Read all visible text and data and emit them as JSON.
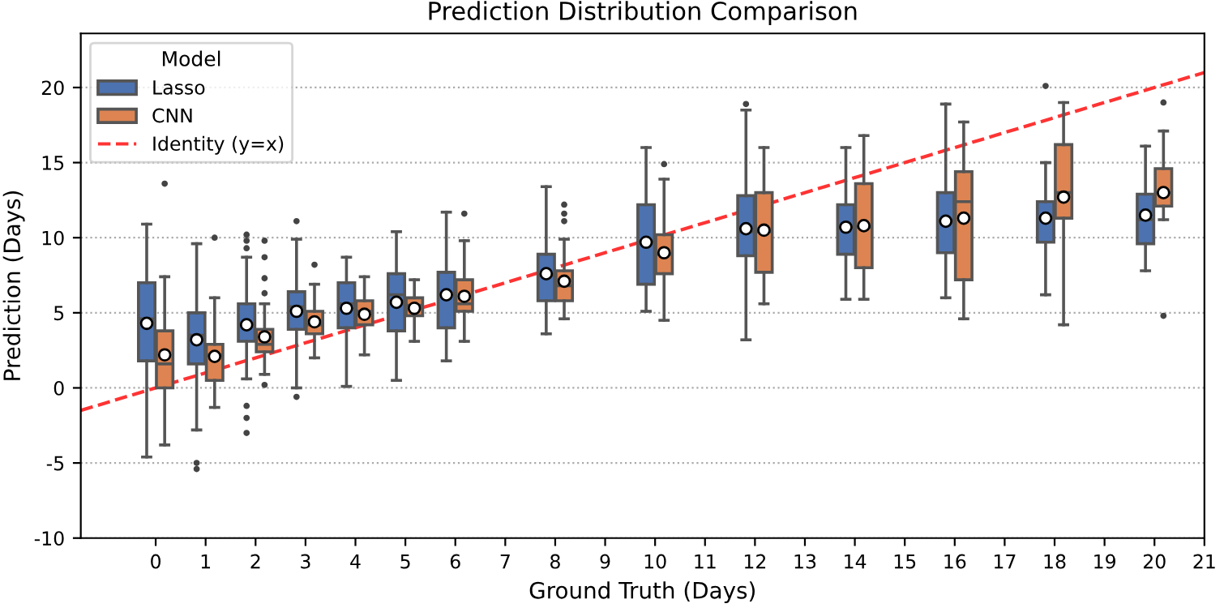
{
  "chart_data": {
    "type": "box",
    "title": "Prediction Distribution Comparison",
    "xlabel": "Ground Truth (Days)",
    "ylabel": "Prediction (Days)",
    "legend_title": "Model",
    "x": [
      0,
      1,
      2,
      3,
      4,
      5,
      6,
      8,
      10,
      12,
      14,
      16,
      18,
      20
    ],
    "xlim": [
      -1.5,
      21
    ],
    "xticks": [
      0,
      1,
      2,
      3,
      4,
      5,
      6,
      7,
      8,
      9,
      10,
      11,
      12,
      13,
      14,
      15,
      16,
      17,
      18,
      19,
      20,
      21
    ],
    "ylim": [
      -10,
      23.6
    ],
    "yticks": [
      -10,
      -5,
      0,
      5,
      10,
      15,
      20
    ],
    "grid": "y",
    "legend": "top left",
    "series": [
      {
        "name": "Lasso",
        "color": "#4c72b0",
        "boxes": [
          {
            "low": -4.6,
            "q1": 1.8,
            "median": 4.6,
            "q3": 7.0,
            "high": 10.9,
            "mean": 4.3
          },
          {
            "low": -2.8,
            "q1": 1.6,
            "median": 3.5,
            "q3": 5.0,
            "high": 9.6,
            "mean": 3.2,
            "outliers": [
              -5.0,
              -5.4
            ]
          },
          {
            "low": 0.6,
            "q1": 3.1,
            "median": 4.3,
            "q3": 5.6,
            "high": 8.7,
            "mean": 4.2,
            "outliers": [
              10.2,
              9.8,
              9.3,
              -1.2,
              -2.0,
              -3.0
            ]
          },
          {
            "low": 0.0,
            "q1": 3.9,
            "median": 5.4,
            "q3": 6.4,
            "high": 9.9,
            "mean": 5.1,
            "outliers": [
              11.1,
              -0.6
            ]
          },
          {
            "low": 0.1,
            "q1": 4.0,
            "median": 5.6,
            "q3": 7.0,
            "high": 8.7,
            "mean": 5.3
          },
          {
            "low": 0.5,
            "q1": 3.8,
            "median": 6.2,
            "q3": 7.6,
            "high": 10.4,
            "mean": 5.7
          },
          {
            "low": 1.8,
            "q1": 4.0,
            "median": 6.3,
            "q3": 7.7,
            "high": 11.7,
            "mean": 6.2
          },
          {
            "low": 3.6,
            "q1": 5.8,
            "median": 7.5,
            "q3": 8.9,
            "high": 13.4,
            "mean": 7.6
          },
          {
            "low": 5.1,
            "q1": 6.9,
            "median": 9.7,
            "q3": 12.2,
            "high": 16.0,
            "mean": 9.7
          },
          {
            "low": 3.2,
            "q1": 8.8,
            "median": 10.4,
            "q3": 12.8,
            "high": 18.5,
            "mean": 10.6,
            "outliers": [
              18.9
            ]
          },
          {
            "low": 5.9,
            "q1": 8.9,
            "median": 10.7,
            "q3": 12.2,
            "high": 16.0,
            "mean": 10.7
          },
          {
            "low": 6.0,
            "q1": 9.0,
            "median": 11.1,
            "q3": 13.0,
            "high": 18.9,
            "mean": 11.1
          },
          {
            "low": 6.2,
            "q1": 9.7,
            "median": 11.3,
            "q3": 12.4,
            "high": 15.0,
            "mean": 11.3,
            "outliers": [
              20.1
            ]
          },
          {
            "low": 7.8,
            "q1": 9.6,
            "median": 11.2,
            "q3": 12.9,
            "high": 16.1,
            "mean": 11.5
          }
        ]
      },
      {
        "name": "CNN",
        "color": "#dd8452",
        "boxes": [
          {
            "low": -3.8,
            "q1": 0.0,
            "median": 1.6,
            "q3": 3.8,
            "high": 7.4,
            "mean": 2.2,
            "outliers": [
              13.6
            ]
          },
          {
            "low": -1.3,
            "q1": 0.5,
            "median": 2.2,
            "q3": 2.9,
            "high": 6.0,
            "mean": 2.1,
            "outliers": [
              10.0
            ]
          },
          {
            "low": 0.9,
            "q1": 2.4,
            "median": 2.9,
            "q3": 3.9,
            "high": 5.6,
            "mean": 3.4,
            "outliers": [
              9.8,
              8.7,
              7.3,
              6.3,
              0.2
            ]
          },
          {
            "low": 2.0,
            "q1": 3.6,
            "median": 4.2,
            "q3": 5.1,
            "high": 6.9,
            "mean": 4.4,
            "outliers": [
              8.2
            ]
          },
          {
            "low": 2.2,
            "q1": 4.2,
            "median": 5.1,
            "q3": 5.8,
            "high": 7.4,
            "mean": 4.9
          },
          {
            "low": 3.1,
            "q1": 4.8,
            "median": 5.5,
            "q3": 6.0,
            "high": 7.2,
            "mean": 5.3
          },
          {
            "low": 3.1,
            "q1": 5.1,
            "median": 5.6,
            "q3": 7.2,
            "high": 9.8,
            "mean": 6.1,
            "outliers": [
              11.6
            ]
          },
          {
            "low": 4.6,
            "q1": 5.8,
            "median": 6.8,
            "q3": 7.8,
            "high": 9.9,
            "mean": 7.1,
            "outliers": [
              12.2,
              11.6,
              11.1
            ]
          },
          {
            "low": 4.5,
            "q1": 7.6,
            "median": 8.9,
            "q3": 10.2,
            "high": 13.9,
            "mean": 9.0,
            "outliers": [
              14.9
            ]
          },
          {
            "low": 5.6,
            "q1": 7.7,
            "median": 10.4,
            "q3": 13.0,
            "high": 16.0,
            "mean": 10.5
          },
          {
            "low": 5.9,
            "q1": 8.0,
            "median": 10.7,
            "q3": 13.6,
            "high": 16.8,
            "mean": 10.8
          },
          {
            "low": 4.6,
            "q1": 7.2,
            "median": 12.4,
            "q3": 14.4,
            "high": 17.7,
            "mean": 11.3
          },
          {
            "low": 4.2,
            "q1": 11.3,
            "median": 13.0,
            "q3": 16.2,
            "high": 19.0,
            "mean": 12.7
          },
          {
            "low": 11.2,
            "q1": 12.1,
            "median": 13.0,
            "q3": 14.6,
            "high": 17.1,
            "mean": 13.0,
            "outliers": [
              19.0,
              4.8
            ]
          }
        ]
      },
      {
        "name": "Identity (y=x)",
        "type": "line",
        "color": "#ff3333",
        "line_style": "dashed",
        "x": [
          -1.5,
          21
        ],
        "values": [
          -1.5,
          21
        ]
      }
    ]
  }
}
